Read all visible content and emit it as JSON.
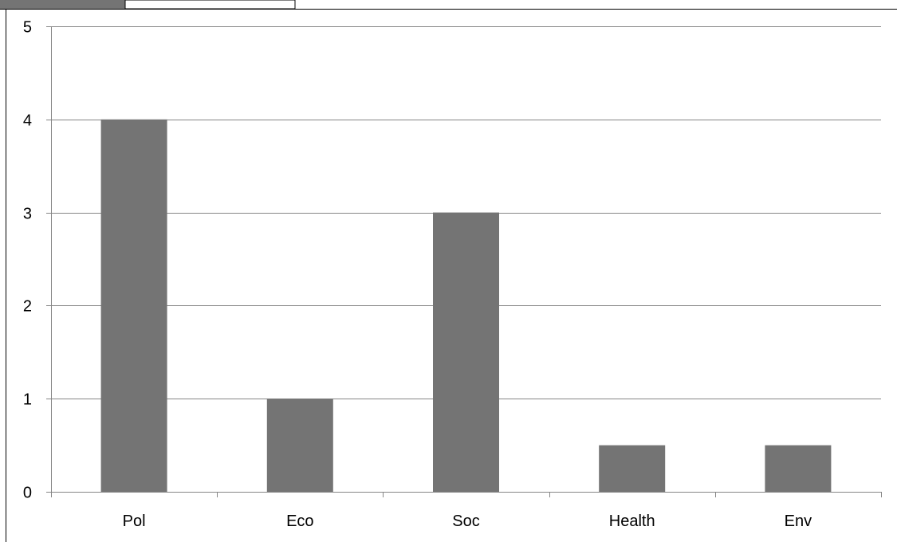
{
  "colors": {
    "bar": "#747474",
    "grid": "#868686",
    "text": "#000000",
    "header_tab": "#747474"
  },
  "chart_data": {
    "type": "bar",
    "categories": [
      "Pol",
      "Eco",
      "Soc",
      "Health",
      "Env"
    ],
    "values": [
      4,
      1,
      3,
      0.5,
      0.5
    ],
    "title": "",
    "xlabel": "",
    "ylabel": "",
    "ylim": [
      0,
      5
    ],
    "yticks": [
      0,
      1,
      2,
      3,
      4,
      5
    ],
    "grid": true,
    "legend": "none"
  }
}
